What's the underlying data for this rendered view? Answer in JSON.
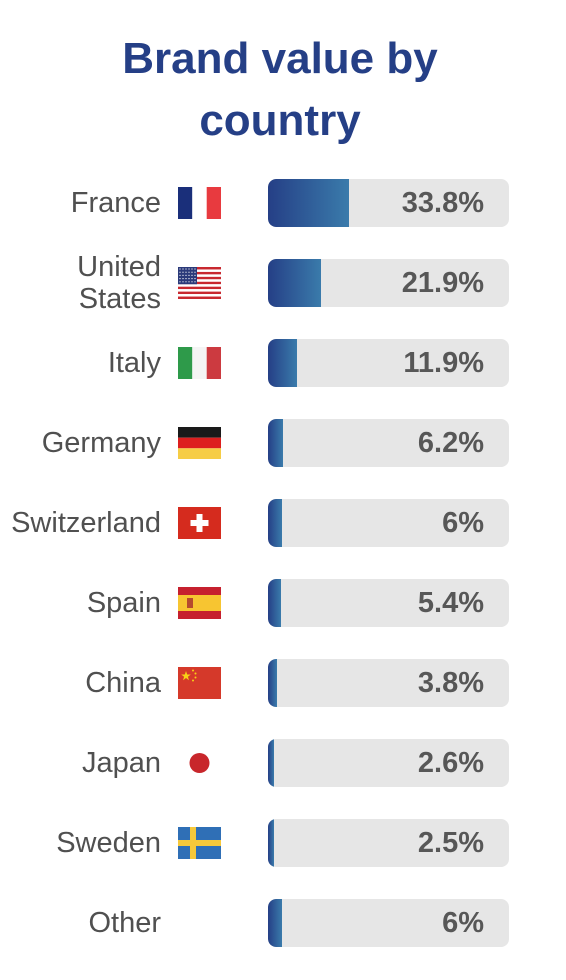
{
  "chart_data": {
    "type": "bar",
    "orientation": "horizontal",
    "title": "Brand value by country",
    "categories": [
      "France",
      "United\nStates",
      "Italy",
      "Germany",
      "Switzerland",
      "Spain",
      "China",
      "Japan",
      "Sweden",
      "Other"
    ],
    "values": [
      33.8,
      21.9,
      11.9,
      6.2,
      6,
      5.4,
      3.8,
      2.6,
      2.5,
      6
    ],
    "value_labels": [
      "33.8%",
      "21.9%",
      "11.9%",
      "6.2%",
      "6%",
      "5.4%",
      "3.8%",
      "2.6%",
      "2.5%",
      "6%"
    ],
    "xlim": [
      0,
      100
    ],
    "flags": [
      "france-flag-icon",
      "usa-flag-icon",
      "italy-flag-icon",
      "germany-flag-icon",
      "switzerland-flag-icon",
      "spain-flag-icon",
      "china-flag-icon",
      "japan-flag-icon",
      "sweden-flag-icon",
      ""
    ],
    "grid": false,
    "bar_color_start": "#253f86",
    "bar_color_end": "#3a7bab",
    "track_color": "#e6e6e6"
  }
}
